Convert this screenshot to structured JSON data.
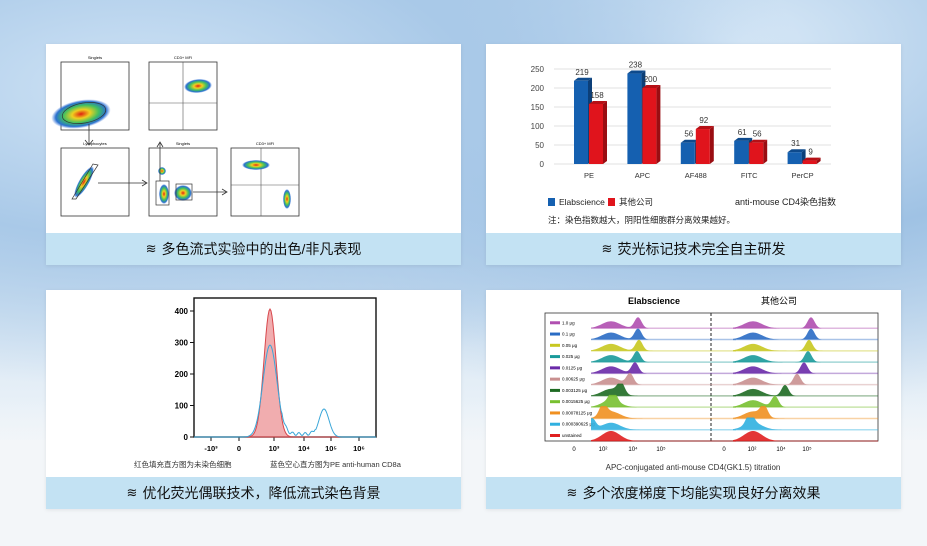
{
  "captions": [
    "多色流式实验中的出色/非凡表现",
    "荧光标记技术完全自主研发",
    "优化荧光偶联技术，降低流式染色背景",
    "多个浓度梯度下均能实现良好分离效果"
  ],
  "caption_icon": "layers-icon",
  "flow_gating": {
    "plots": [
      "Singlets",
      "CD3+ MFI",
      "Lymphocytes",
      "Singlets",
      "CD3+ MFI"
    ]
  },
  "chart_data": [
    {
      "type": "bar",
      "categories": [
        "PE",
        "APC",
        "AF488",
        "FITC",
        "PerCP"
      ],
      "series": [
        {
          "name": "Elabscience",
          "values": [
            219,
            238,
            56,
            61,
            31
          ],
          "color": "#1560b0"
        },
        {
          "name": "其他公司",
          "values": [
            158,
            200,
            92,
            56,
            9
          ],
          "color": "#e0141c"
        }
      ],
      "yticks": [
        0,
        50,
        100,
        150,
        200,
        250
      ],
      "ylim": [
        0,
        250
      ],
      "title": "anti-mouse CD4染色指数",
      "note": "注：染色指数越大，阴阳性细胞群分离效果越好。",
      "grid": true,
      "legend": "bottom-left"
    },
    {
      "type": "line",
      "yticks": [
        "0",
        "100",
        "200",
        "300",
        "400"
      ],
      "xticks": [
        "-10³",
        "0",
        "10³",
        "10⁴",
        "10⁵",
        "10⁶"
      ],
      "caption_left": "红色填充直方图为未染色细胞",
      "caption_right": "蓝色空心直方图为PE anti-human CD8a",
      "series": [
        {
          "color": "#e8777a"
        },
        {
          "color": "#3aa6d8"
        }
      ]
    },
    {
      "type": "area",
      "panels": [
        "Elabscience",
        "其他公司"
      ],
      "xticks": [
        "0",
        "10²",
        "10⁴",
        "10⁵"
      ],
      "xlabel": "APC-conjugated anti-mouse CD4(GK1.5) titration",
      "rows": [
        {
          "label": "1.0 μg",
          "color": "#b04fb0"
        },
        {
          "label": "0.1 μg",
          "color": "#2a6cc4"
        },
        {
          "label": "0.05 μg",
          "color": "#c8c820"
        },
        {
          "label": "0.025 μg",
          "color": "#1a9a9a"
        },
        {
          "label": "0.0125 μg",
          "color": "#6a2aa8"
        },
        {
          "label": "0.00625 μg",
          "color": "#c99090"
        },
        {
          "label": "0.003125 μg",
          "color": "#1e6a22"
        },
        {
          "label": "0.0015625 μg",
          "color": "#78c030"
        },
        {
          "label": "0.00078125 μg",
          "color": "#f09020"
        },
        {
          "label": "0.000390625 μg",
          "color": "#30b0e0"
        },
        {
          "label": "unstained",
          "color": "#e02020"
        }
      ]
    }
  ]
}
